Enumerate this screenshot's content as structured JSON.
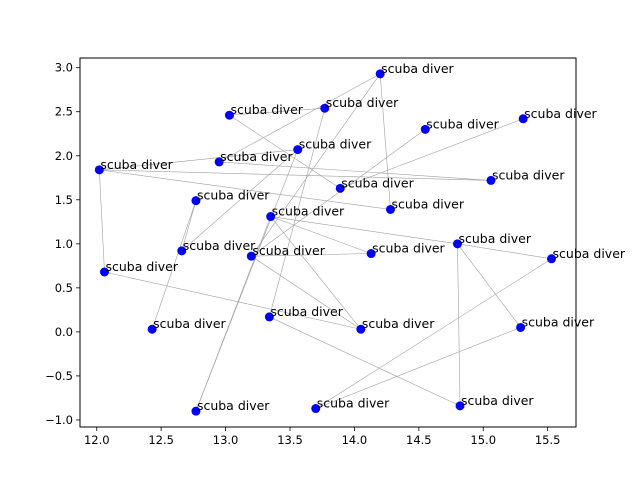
{
  "chart_data": {
    "type": "scatter",
    "title": "",
    "xlabel": "",
    "ylabel": "",
    "xlim": [
      11.87,
      15.72
    ],
    "ylim": [
      -1.08,
      3.11
    ],
    "grid": false,
    "legend": false,
    "point_color": "#0000ff",
    "edge_color": "#a0a0a0",
    "xticks": [
      {
        "v": 12.0,
        "label": "12.0"
      },
      {
        "v": 12.5,
        "label": "12.5"
      },
      {
        "v": 13.0,
        "label": "13.0"
      },
      {
        "v": 13.5,
        "label": "13.5"
      },
      {
        "v": 14.0,
        "label": "14.0"
      },
      {
        "v": 14.5,
        "label": "14.5"
      },
      {
        "v": 15.0,
        "label": "15.0"
      },
      {
        "v": 15.5,
        "label": "15.5"
      }
    ],
    "yticks": [
      {
        "v": -1.0,
        "label": "−1.0"
      },
      {
        "v": -0.5,
        "label": "−0.5"
      },
      {
        "v": 0.0,
        "label": "0.0"
      },
      {
        "v": 0.5,
        "label": "0.5"
      },
      {
        "v": 1.0,
        "label": "1.0"
      },
      {
        "v": 1.5,
        "label": "1.5"
      },
      {
        "v": 2.0,
        "label": "2.0"
      },
      {
        "v": 2.5,
        "label": "2.5"
      },
      {
        "v": 3.0,
        "label": "3.0"
      }
    ],
    "points": [
      {
        "x": 14.2,
        "y": 2.93,
        "label": "scuba diver"
      },
      {
        "x": 13.77,
        "y": 2.54,
        "label": "scuba diver"
      },
      {
        "x": 13.03,
        "y": 2.46,
        "label": "scuba diver"
      },
      {
        "x": 15.31,
        "y": 2.42,
        "label": "scuba diver"
      },
      {
        "x": 14.55,
        "y": 2.3,
        "label": "scuba diver"
      },
      {
        "x": 13.56,
        "y": 2.07,
        "label": "scuba diver"
      },
      {
        "x": 12.95,
        "y": 1.93,
        "label": "scuba diver"
      },
      {
        "x": 12.02,
        "y": 1.84,
        "label": "scuba diver"
      },
      {
        "x": 15.06,
        "y": 1.72,
        "label": "scuba diver"
      },
      {
        "x": 13.89,
        "y": 1.63,
        "label": "scuba diver"
      },
      {
        "x": 12.77,
        "y": 1.49,
        "label": "scuba diver"
      },
      {
        "x": 14.28,
        "y": 1.39,
        "label": "scuba diver"
      },
      {
        "x": 13.35,
        "y": 1.31,
        "label": "scuba diver"
      },
      {
        "x": 14.8,
        "y": 1.0,
        "label": "scuba diver"
      },
      {
        "x": 12.66,
        "y": 0.92,
        "label": "scuba diver"
      },
      {
        "x": 13.2,
        "y": 0.86,
        "label": "scuba diver"
      },
      {
        "x": 14.13,
        "y": 0.89,
        "label": "scuba diver"
      },
      {
        "x": 15.53,
        "y": 0.83,
        "label": "scuba diver"
      },
      {
        "x": 12.06,
        "y": 0.68,
        "label": "scuba diver"
      },
      {
        "x": 12.43,
        "y": 0.03,
        "label": "scuba diver"
      },
      {
        "x": 13.34,
        "y": 0.17,
        "label": "scuba diver"
      },
      {
        "x": 14.05,
        "y": 0.03,
        "label": "scuba diver"
      },
      {
        "x": 15.29,
        "y": 0.05,
        "label": "scuba diver"
      },
      {
        "x": 13.7,
        "y": -0.87,
        "label": "scuba diver"
      },
      {
        "x": 14.82,
        "y": -0.84,
        "label": "scuba diver"
      },
      {
        "x": 12.77,
        "y": -0.9,
        "label": "scuba diver"
      }
    ],
    "edges": [
      [
        0,
        6
      ],
      [
        0,
        11
      ],
      [
        0,
        15
      ],
      [
        1,
        2
      ],
      [
        1,
        20
      ],
      [
        2,
        9
      ],
      [
        3,
        9
      ],
      [
        4,
        15
      ],
      [
        5,
        7
      ],
      [
        5,
        14
      ],
      [
        5,
        25
      ],
      [
        6,
        8
      ],
      [
        7,
        8
      ],
      [
        7,
        11
      ],
      [
        7,
        18
      ],
      [
        10,
        19
      ],
      [
        12,
        13
      ],
      [
        12,
        25
      ],
      [
        12,
        21
      ],
      [
        12,
        16
      ],
      [
        13,
        22
      ],
      [
        13,
        24
      ],
      [
        14,
        10
      ],
      [
        15,
        21
      ],
      [
        16,
        15
      ],
      [
        17,
        23
      ],
      [
        17,
        13
      ],
      [
        18,
        21
      ],
      [
        20,
        24
      ],
      [
        22,
        23
      ]
    ]
  }
}
